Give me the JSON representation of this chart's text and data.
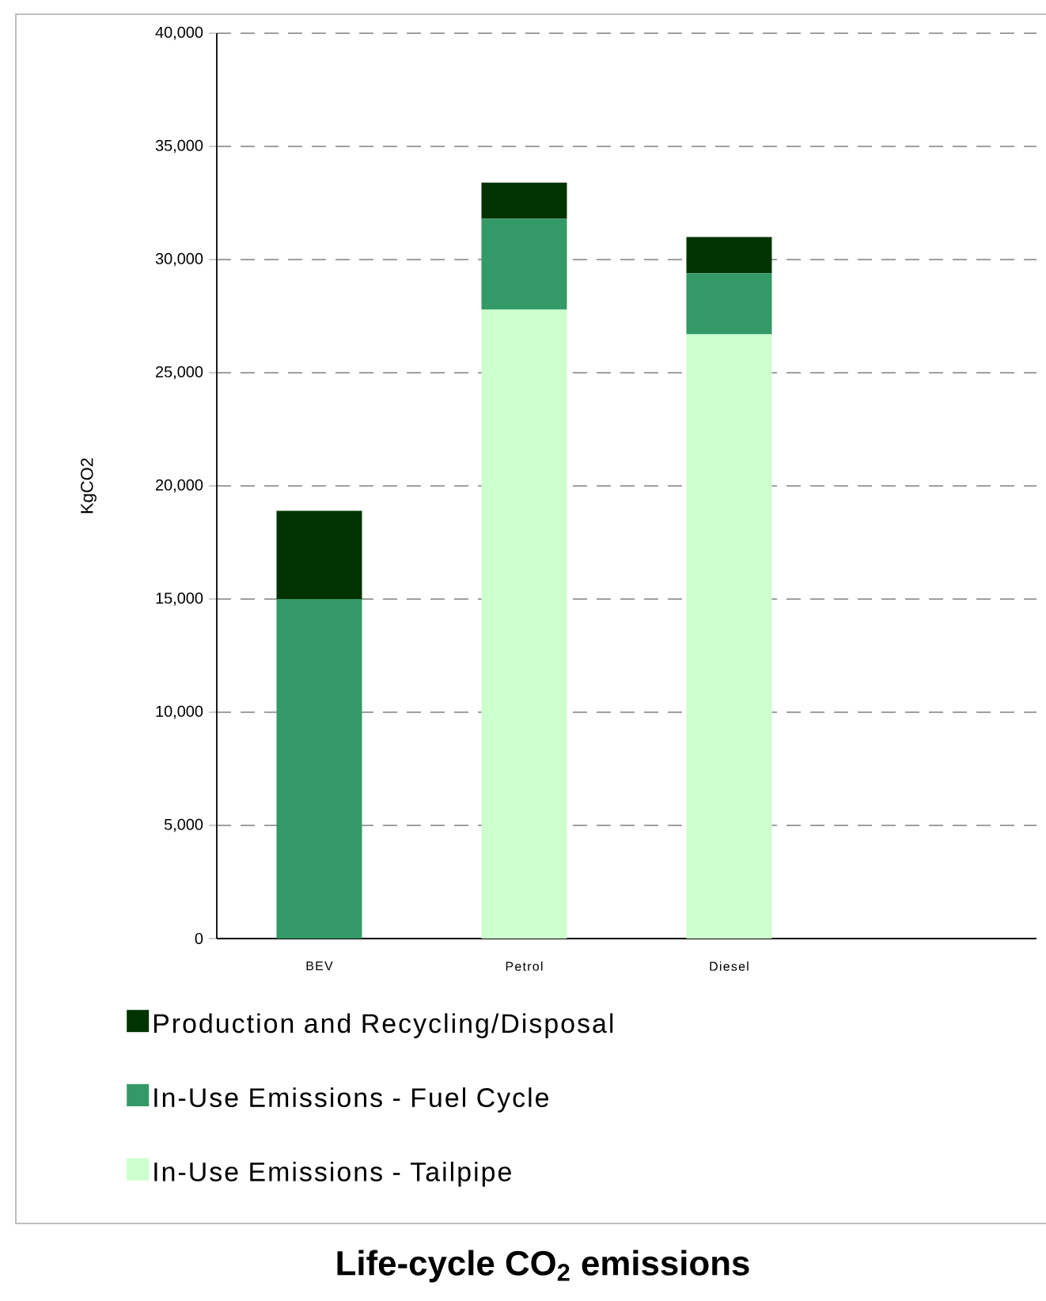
{
  "chart_data": {
    "type": "bar",
    "stacked": true,
    "title": "Life-cycle CO$_{2}$ emissions",
    "ylabel": "KgCO2",
    "categories": [
      "BEV",
      "Petrol",
      "Diesel",
      null
    ],
    "series": [
      {
        "name": "In-Use Emissions - Tailpipe",
        "color": "#ccffcc",
        "values": [
          0,
          27800,
          26700,
          null
        ]
      },
      {
        "name": "In-Use Emissions - Fuel Cycle",
        "color": "#339966",
        "values": [
          15000,
          4000,
          2700,
          null
        ]
      },
      {
        "name": "Production and Recycling/Disposal",
        "color": "#003300",
        "values": [
          3900,
          1600,
          1600,
          null
        ]
      }
    ],
    "ylim": [
      0,
      40000
    ],
    "yticks": [
      0,
      {
        "value": 5000,
        "label": "5,000"
      },
      {
        "value": 10000,
        "label": "10,000"
      },
      {
        "value": 15000,
        "label": "15,000"
      },
      {
        "value": 20000,
        "label": "20,000"
      },
      {
        "value": 25000,
        "label": "25,000"
      },
      {
        "value": 30000,
        "label": "30,000"
      },
      {
        "value": 35000,
        "label": "35,000"
      },
      {
        "value": 40000,
        "label": "40,000"
      }
    ],
    "grid": "y",
    "legend": "bottom"
  }
}
